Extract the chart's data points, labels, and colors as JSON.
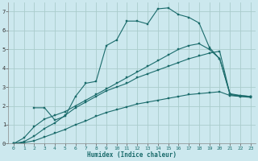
{
  "xlabel": "Humidex (Indice chaleur)",
  "background_color": "#cce8ee",
  "grid_color": "#aacccc",
  "line_color": "#1a6b6b",
  "xlim": [
    -0.5,
    23.5
  ],
  "ylim": [
    0,
    7.5
  ],
  "xticks": [
    0,
    1,
    2,
    3,
    4,
    5,
    6,
    7,
    8,
    9,
    10,
    11,
    12,
    13,
    14,
    15,
    16,
    17,
    18,
    19,
    20,
    21,
    22,
    23
  ],
  "yticks": [
    0,
    1,
    2,
    3,
    4,
    5,
    6,
    7
  ],
  "curve1_x": [
    0,
    1,
    2,
    3,
    4,
    5,
    6,
    7,
    8,
    9,
    10,
    11,
    12,
    13,
    14,
    15,
    16,
    17,
    18,
    19,
    20,
    21,
    22,
    23
  ],
  "curve1_y": [
    0.0,
    0.3,
    0.9,
    1.3,
    1.5,
    1.7,
    2.0,
    2.3,
    2.6,
    2.9,
    3.2,
    3.5,
    3.8,
    4.1,
    4.4,
    4.7,
    5.0,
    5.2,
    5.3,
    5.0,
    4.5,
    2.6,
    2.5,
    2.5
  ],
  "curve2_x": [
    0,
    1,
    2,
    3,
    4,
    5,
    6,
    7,
    8,
    9,
    10,
    11,
    12,
    13,
    14,
    15,
    16,
    17,
    18,
    19,
    20,
    21,
    22,
    23
  ],
  "curve2_y": [
    0.0,
    0.1,
    0.4,
    0.8,
    1.1,
    1.5,
    1.9,
    2.2,
    2.5,
    2.8,
    3.0,
    3.2,
    3.5,
    3.7,
    3.9,
    4.1,
    4.3,
    4.5,
    4.65,
    4.8,
    4.9,
    2.6,
    2.55,
    2.5
  ],
  "curve3_x": [
    2,
    3,
    4,
    5,
    6,
    7,
    8,
    9,
    10,
    11,
    12,
    13,
    14,
    15,
    16,
    17,
    18,
    19,
    20,
    21,
    22,
    23
  ],
  "curve3_y": [
    1.9,
    1.9,
    1.25,
    1.45,
    2.5,
    3.2,
    3.3,
    5.2,
    5.5,
    6.5,
    6.5,
    6.35,
    7.15,
    7.2,
    6.85,
    6.7,
    6.4,
    5.1,
    4.5,
    2.65,
    2.55,
    2.5
  ],
  "curve4_x": [
    0,
    1,
    2,
    3,
    4,
    5,
    6,
    7,
    8,
    9,
    10,
    11,
    12,
    13,
    14,
    15,
    16,
    17,
    18,
    19,
    20,
    21,
    22,
    23
  ],
  "curve4_y": [
    0.0,
    0.05,
    0.15,
    0.35,
    0.55,
    0.75,
    1.0,
    1.2,
    1.45,
    1.65,
    1.8,
    1.95,
    2.1,
    2.2,
    2.3,
    2.4,
    2.5,
    2.6,
    2.65,
    2.7,
    2.75,
    2.55,
    2.5,
    2.45
  ]
}
